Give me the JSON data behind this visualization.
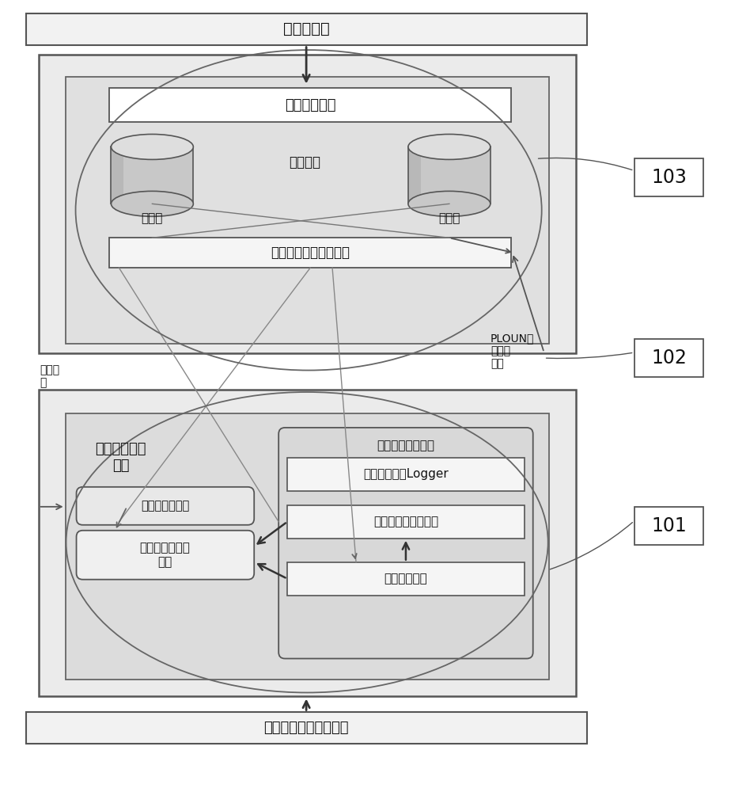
{
  "bg_color": "#ffffff",
  "text_new_cmd": "新命令上传",
  "text_cmd_mgr": "命令管理接口",
  "text_cloud": "云服务器",
  "text_prog_lib": "程序库",
  "text_db": "数据库",
  "text_cmd_combo": "命令解释模块代码组合",
  "text_network_burn": "网络烧\n录",
  "text_ploun": "PLOUN算\n法定制\n结果",
  "text_hetero": "异构多处理器\n节点",
  "text_res_limited": "资源受限处理器",
  "text_custom_interp": "自定制命令解释\n模块",
  "text_res_unlimited": "资源非受限处理器",
  "text_user_logger": "用户使用命令Logger",
  "text_full_interp": "全功能命令解释模块",
  "text_cmd_dispatch": "命令分发模块",
  "text_cmd_seq": "命令序列（应用程序）",
  "label_103": "103",
  "label_102": "102",
  "label_101": "101"
}
